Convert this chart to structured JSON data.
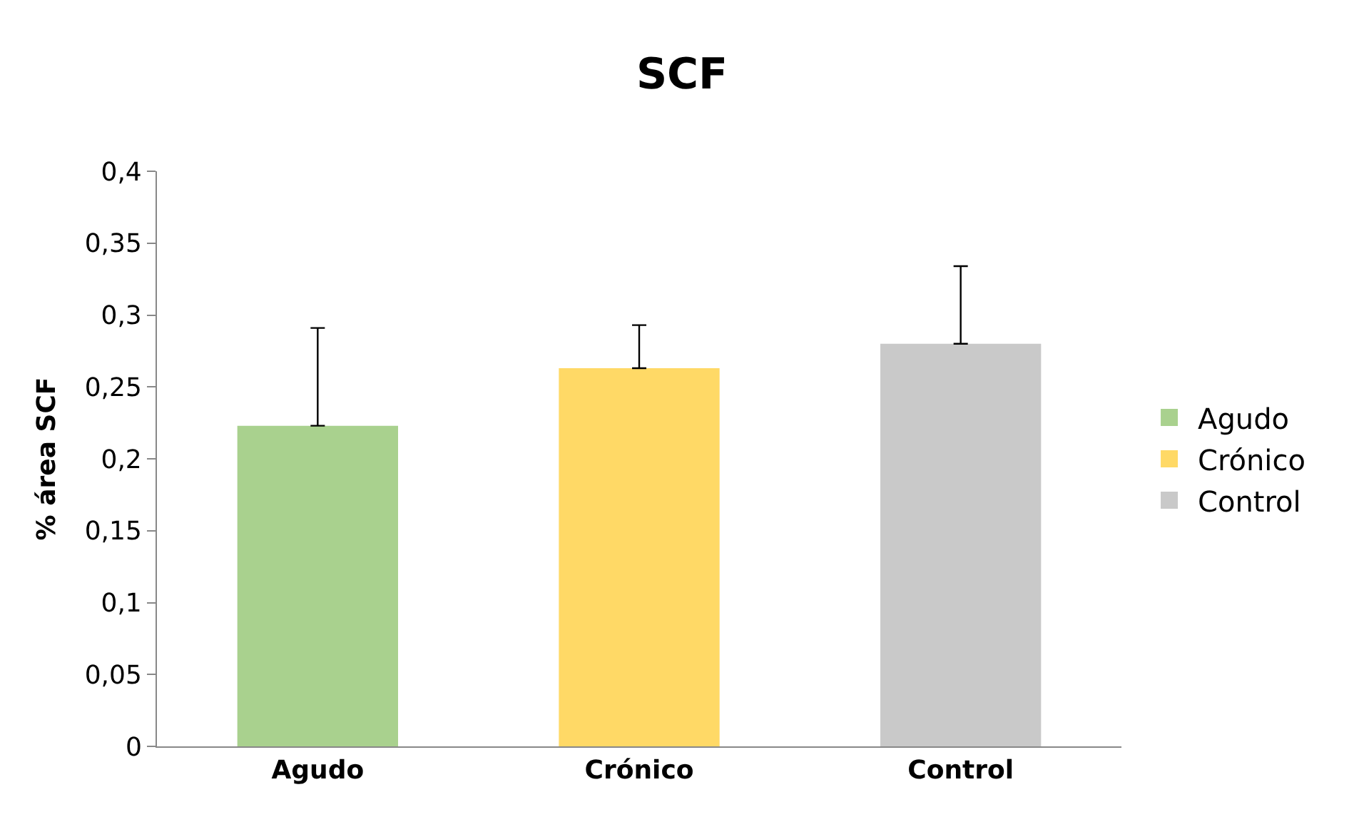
{
  "chart_data": {
    "type": "bar",
    "title": "SCF",
    "ylabel": "% área SCF",
    "categories": [
      "Agudo",
      "Crónico",
      "Control"
    ],
    "series": [
      {
        "name": "Agudo",
        "color": "#a9d18e",
        "values": [
          0.223,
          null,
          null
        ],
        "errors": [
          [
            0.223,
            0.291
          ],
          null,
          null
        ]
      },
      {
        "name": "Crónico",
        "color": "#ffd966",
        "values": [
          null,
          0.263,
          null
        ],
        "errors": [
          null,
          [
            0.263,
            0.293
          ],
          null
        ]
      },
      {
        "name": "Control",
        "color": "#c9c9c9",
        "values": [
          null,
          null,
          0.28
        ],
        "errors": [
          null,
          null,
          [
            0.28,
            0.334
          ]
        ]
      }
    ],
    "ylim": [
      0,
      0.4
    ],
    "yticks": [
      0,
      {
        "value": 0.05,
        "label": "0,05"
      },
      {
        "value": 0.1,
        "label": "0,1"
      },
      {
        "value": 0.15,
        "label": "0,15"
      },
      {
        "value": 0.2,
        "label": "0,2"
      },
      {
        "value": 0.25,
        "label": "0,25"
      },
      {
        "value": 0.3,
        "label": "0,3"
      },
      {
        "value": 0.35,
        "label": "0,35"
      },
      {
        "value": 0.4,
        "label": "0,4"
      }
    ],
    "grid": false,
    "legend": "right"
  }
}
